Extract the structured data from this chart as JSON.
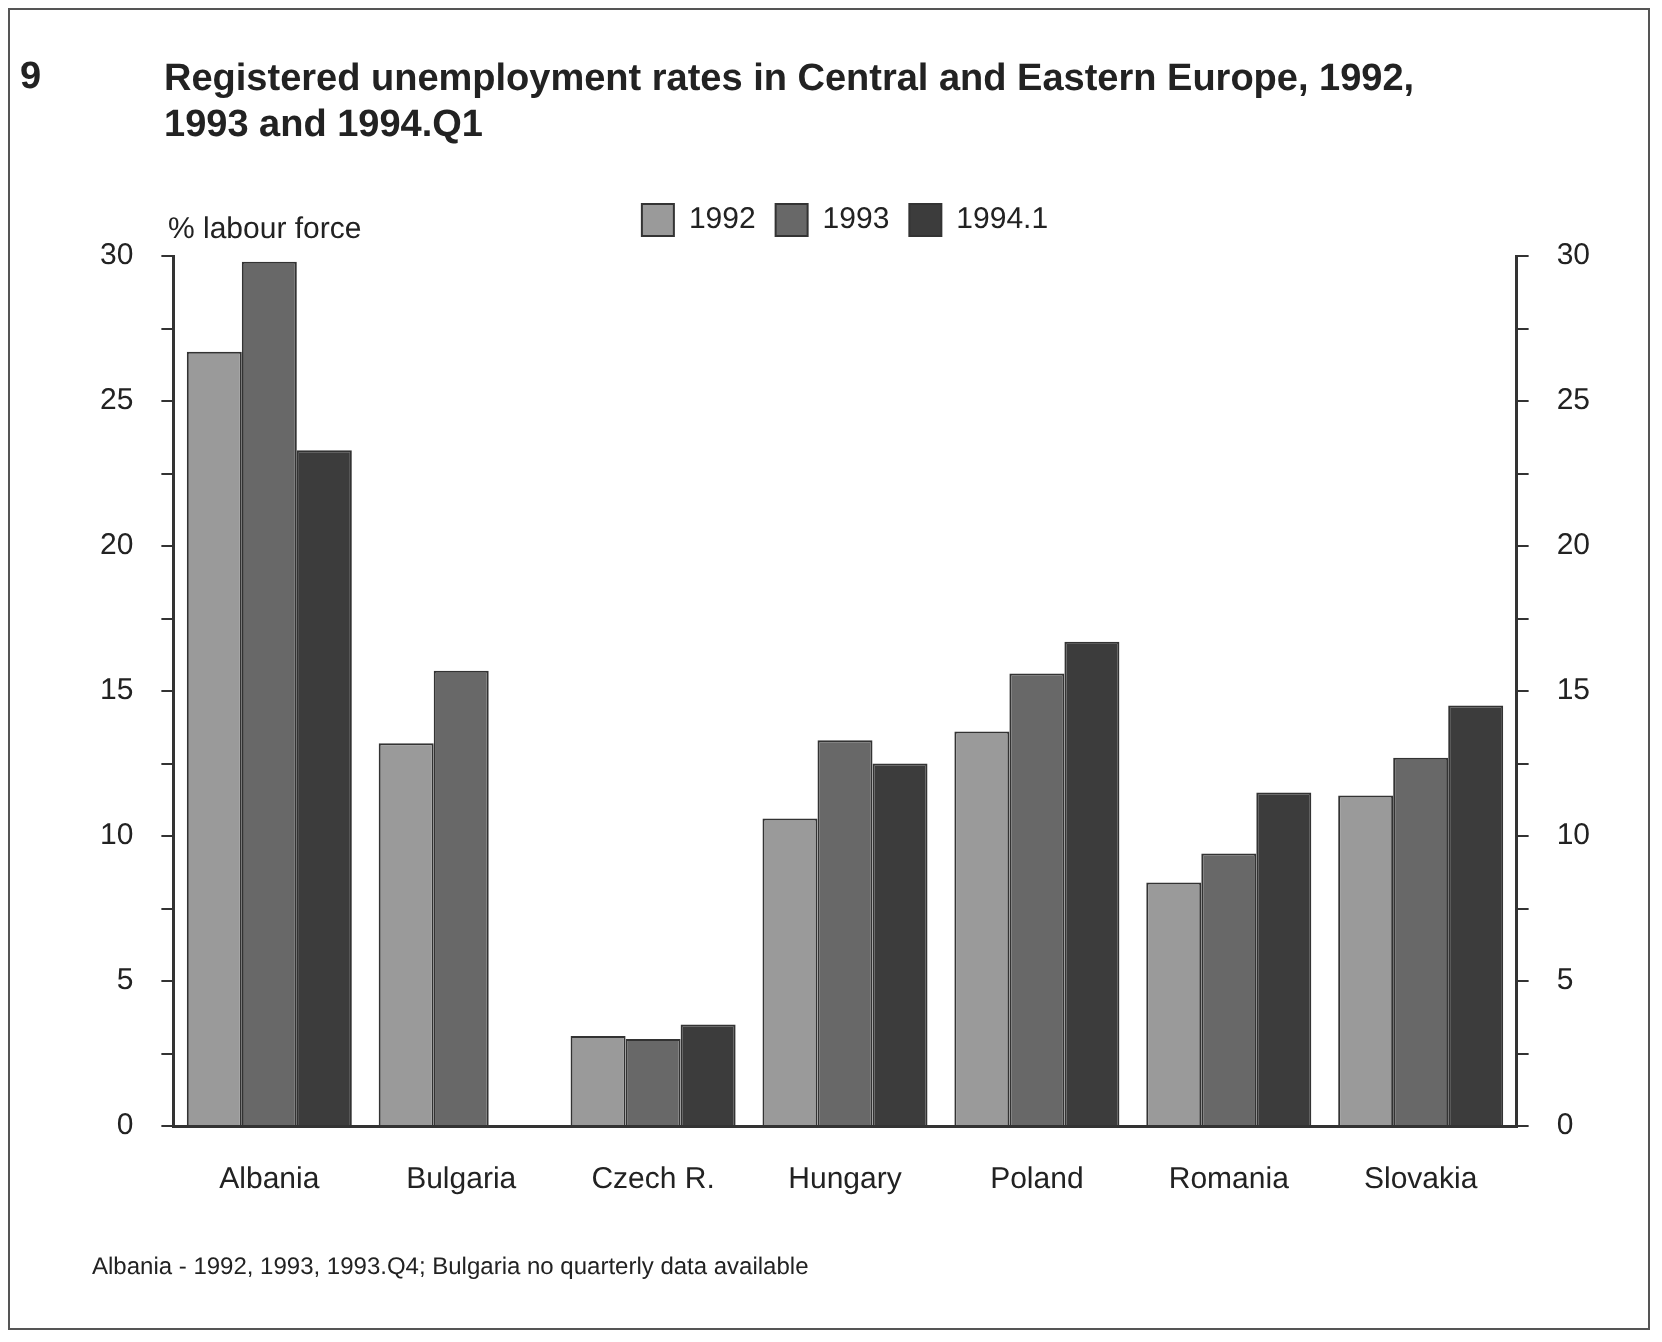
{
  "chart_data": {
    "type": "bar",
    "title": "Registered unemployment rates in Central and Eastern Europe, 1992, 1993 and 1994.Q1",
    "ylabel": "% labour force",
    "categories": [
      "Albania",
      "Bulgaria",
      "Czech R.",
      "Hungary",
      "Poland",
      "Romania",
      "Slovakia"
    ],
    "series": [
      {
        "name": "1992",
        "color": "#9a9a9a",
        "values": [
          26.7,
          13.2,
          3.1,
          10.6,
          13.6,
          8.4,
          11.4
        ]
      },
      {
        "name": "1993",
        "color": "#686868",
        "values": [
          29.8,
          15.7,
          3.0,
          13.3,
          15.6,
          9.4,
          12.7
        ]
      },
      {
        "name": "1994.1",
        "color": "#3c3c3c",
        "values": [
          23.3,
          null,
          3.5,
          12.5,
          16.7,
          11.5,
          14.5
        ]
      }
    ],
    "ylim": [
      0,
      30
    ],
    "yticks": [
      0,
      {
        "value": 2.5,
        "label": null
      },
      5,
      {
        "value": 7.5,
        "label": null
      },
      10,
      {
        "value": 12.5,
        "label": null
      },
      15,
      {
        "value": 17.5,
        "label": null
      },
      20,
      {
        "value": 22.5,
        "label": null
      },
      25,
      {
        "value": 27.5,
        "label": null
      },
      30
    ],
    "y2lim": [
      0,
      30
    ],
    "y2ticks": [
      0,
      {
        "value": 2.5,
        "label": null
      },
      5,
      {
        "value": 7.5,
        "label": null
      },
      10,
      {
        "value": 12.5,
        "label": null
      },
      15,
      {
        "value": 17.5,
        "label": null
      },
      20,
      {
        "value": 22.5,
        "label": null
      },
      25,
      {
        "value": 27.5,
        "label": null
      },
      30
    ],
    "grid": false,
    "legend": "top",
    "annotations": [
      "9",
      "Albania - 1992, 1993, 1993.Q4; Bulgaria no quarterly data available"
    ]
  }
}
